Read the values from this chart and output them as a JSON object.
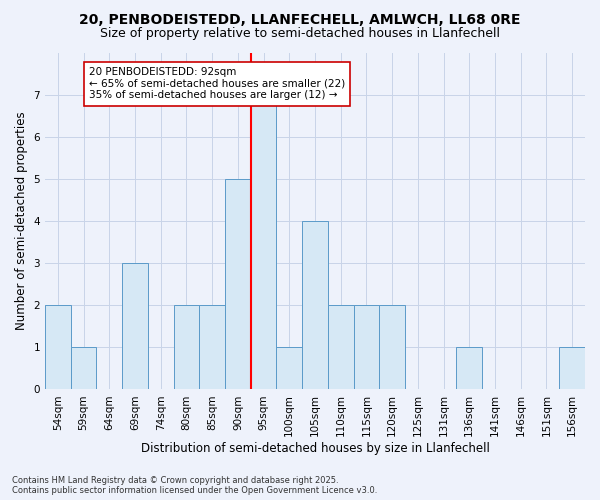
{
  "title1": "20, PENBODEISTEDD, LLANFECHELL, AMLWCH, LL68 0RE",
  "title2": "Size of property relative to semi-detached houses in Llanfechell",
  "xlabel": "Distribution of semi-detached houses by size in Llanfechell",
  "ylabel": "Number of semi-detached properties",
  "footnote": "Contains HM Land Registry data © Crown copyright and database right 2025.\nContains public sector information licensed under the Open Government Licence v3.0.",
  "categories": [
    "54sqm",
    "59sqm",
    "64sqm",
    "69sqm",
    "74sqm",
    "80sqm",
    "85sqm",
    "90sqm",
    "95sqm",
    "100sqm",
    "105sqm",
    "110sqm",
    "115sqm",
    "120sqm",
    "125sqm",
    "131sqm",
    "136sqm",
    "141sqm",
    "146sqm",
    "151sqm",
    "156sqm"
  ],
  "values": [
    2,
    1,
    0,
    3,
    0,
    2,
    2,
    5,
    7,
    1,
    4,
    2,
    2,
    2,
    0,
    0,
    1,
    0,
    0,
    0,
    1
  ],
  "bar_color": "#d6e8f5",
  "bar_edge_color": "#5b9ac9",
  "red_line_x": 8.5,
  "annotation_text": "20 PENBODEISTEDD: 92sqm\n← 65% of semi-detached houses are smaller (22)\n35% of semi-detached houses are larger (12) →",
  "ylim": [
    0,
    8
  ],
  "yticks": [
    0,
    1,
    2,
    3,
    4,
    5,
    6,
    7
  ],
  "bg_color": "#eef2fb",
  "grid_color": "#c8d4e8",
  "title_fontsize": 10,
  "subtitle_fontsize": 9,
  "axis_label_fontsize": 8.5,
  "tick_fontsize": 7.5,
  "annot_fontsize": 7.5
}
